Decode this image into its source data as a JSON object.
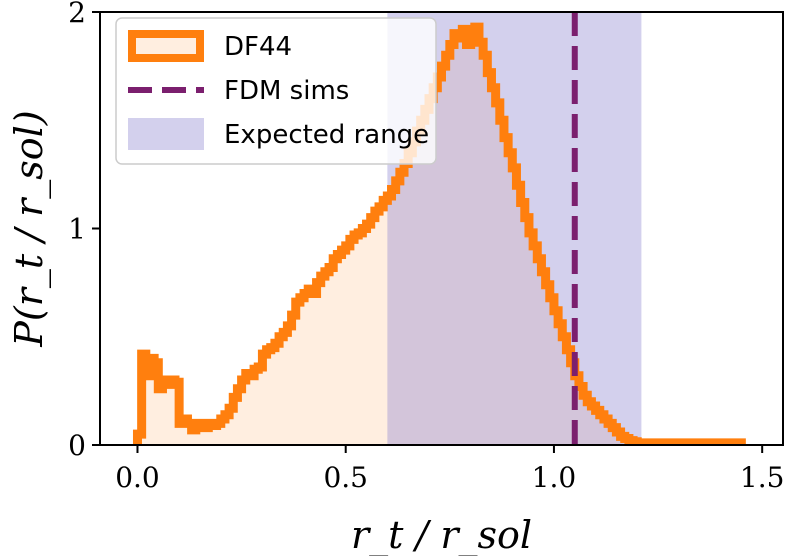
{
  "chart_data": {
    "type": "area",
    "title": "",
    "xlabel": "r_t / r_sol",
    "ylabel": "P(r_t / r_sol)",
    "xlim": [
      -0.09,
      1.55
    ],
    "ylim": [
      0,
      2.0
    ],
    "xticks": [
      "0.0",
      "0.5",
      "1.0",
      "1.5"
    ],
    "xtick_values": [
      0.0,
      0.5,
      1.0,
      1.5
    ],
    "yticks": [
      "0",
      "1",
      "2"
    ],
    "ytick_values": [
      0,
      1,
      2
    ],
    "grid": false,
    "legend_position": "top-left",
    "series": [
      {
        "name": "DF44",
        "kind": "histogram-step",
        "color": "#ff7f0e",
        "x": [
          0.0,
          0.01,
          0.02,
          0.03,
          0.04,
          0.05,
          0.06,
          0.07,
          0.08,
          0.09,
          0.1,
          0.11,
          0.12,
          0.13,
          0.14,
          0.15,
          0.16,
          0.17,
          0.18,
          0.19,
          0.2,
          0.21,
          0.22,
          0.23,
          0.24,
          0.25,
          0.26,
          0.27,
          0.28,
          0.29,
          0.3,
          0.31,
          0.32,
          0.33,
          0.34,
          0.35,
          0.36,
          0.37,
          0.38,
          0.39,
          0.4,
          0.41,
          0.42,
          0.43,
          0.44,
          0.45,
          0.46,
          0.47,
          0.48,
          0.49,
          0.5,
          0.51,
          0.52,
          0.53,
          0.54,
          0.55,
          0.56,
          0.57,
          0.58,
          0.59,
          0.6,
          0.61,
          0.62,
          0.63,
          0.64,
          0.65,
          0.66,
          0.67,
          0.68,
          0.69,
          0.7,
          0.71,
          0.72,
          0.73,
          0.74,
          0.75,
          0.76,
          0.77,
          0.78,
          0.79,
          0.8,
          0.81,
          0.82,
          0.83,
          0.84,
          0.85,
          0.86,
          0.87,
          0.88,
          0.89,
          0.9,
          0.91,
          0.92,
          0.93,
          0.94,
          0.95,
          0.96,
          0.97,
          0.98,
          0.99,
          1.0,
          1.01,
          1.02,
          1.03,
          1.04,
          1.05,
          1.06,
          1.07,
          1.08,
          1.09,
          1.1,
          1.11,
          1.12,
          1.13,
          1.14,
          1.15,
          1.16,
          1.17,
          1.18,
          1.19,
          1.2,
          1.21,
          1.22,
          1.23,
          1.24,
          1.25,
          1.26,
          1.27,
          1.28,
          1.29,
          1.3,
          1.31,
          1.32,
          1.33,
          1.34,
          1.35,
          1.36,
          1.37,
          1.38,
          1.39,
          1.4,
          1.41,
          1.42,
          1.43,
          1.44,
          1.45
        ],
        "y": [
          0.05,
          0.42,
          0.32,
          0.4,
          0.38,
          0.26,
          0.3,
          0.28,
          0.3,
          0.29,
          0.1,
          0.12,
          0.1,
          0.07,
          0.1,
          0.08,
          0.08,
          0.1,
          0.09,
          0.1,
          0.12,
          0.14,
          0.17,
          0.22,
          0.26,
          0.3,
          0.33,
          0.32,
          0.35,
          0.36,
          0.42,
          0.44,
          0.45,
          0.47,
          0.5,
          0.52,
          0.55,
          0.6,
          0.66,
          0.68,
          0.7,
          0.72,
          0.7,
          0.75,
          0.78,
          0.8,
          0.82,
          0.86,
          0.88,
          0.9,
          0.92,
          0.95,
          0.97,
          0.98,
          1.0,
          1.02,
          1.05,
          1.08,
          1.1,
          1.13,
          1.15,
          1.18,
          1.22,
          1.26,
          1.3,
          1.35,
          1.4,
          1.45,
          1.5,
          1.55,
          1.6,
          1.65,
          1.7,
          1.75,
          1.8,
          1.85,
          1.9,
          1.88,
          1.92,
          1.85,
          1.9,
          1.93,
          1.86,
          1.8,
          1.72,
          1.65,
          1.58,
          1.5,
          1.42,
          1.35,
          1.28,
          1.2,
          1.12,
          1.05,
          0.98,
          0.92,
          0.86,
          0.8,
          0.74,
          0.68,
          0.62,
          0.56,
          0.5,
          0.44,
          0.38,
          0.32,
          0.27,
          0.23,
          0.2,
          0.18,
          0.16,
          0.14,
          0.12,
          0.1,
          0.08,
          0.06,
          0.04,
          0.03,
          0.02,
          0.015,
          0.01,
          0.01,
          0.01,
          0.01,
          0.01,
          0.01,
          0.01,
          0.01,
          0.01,
          0.01,
          0.01,
          0.01,
          0.01,
          0.01,
          0.01,
          0.01,
          0.01,
          0.01,
          0.01,
          0.01,
          0.01,
          0.01,
          0.01,
          0.01,
          0.01,
          0.0
        ]
      },
      {
        "name": "FDM sims",
        "kind": "vertical-line",
        "color": "#7b1f6e",
        "x": 1.05
      },
      {
        "name": "Expected range",
        "kind": "vertical-band",
        "color": "#8c83d0",
        "x": [
          0.6,
          1.21
        ]
      }
    ]
  }
}
